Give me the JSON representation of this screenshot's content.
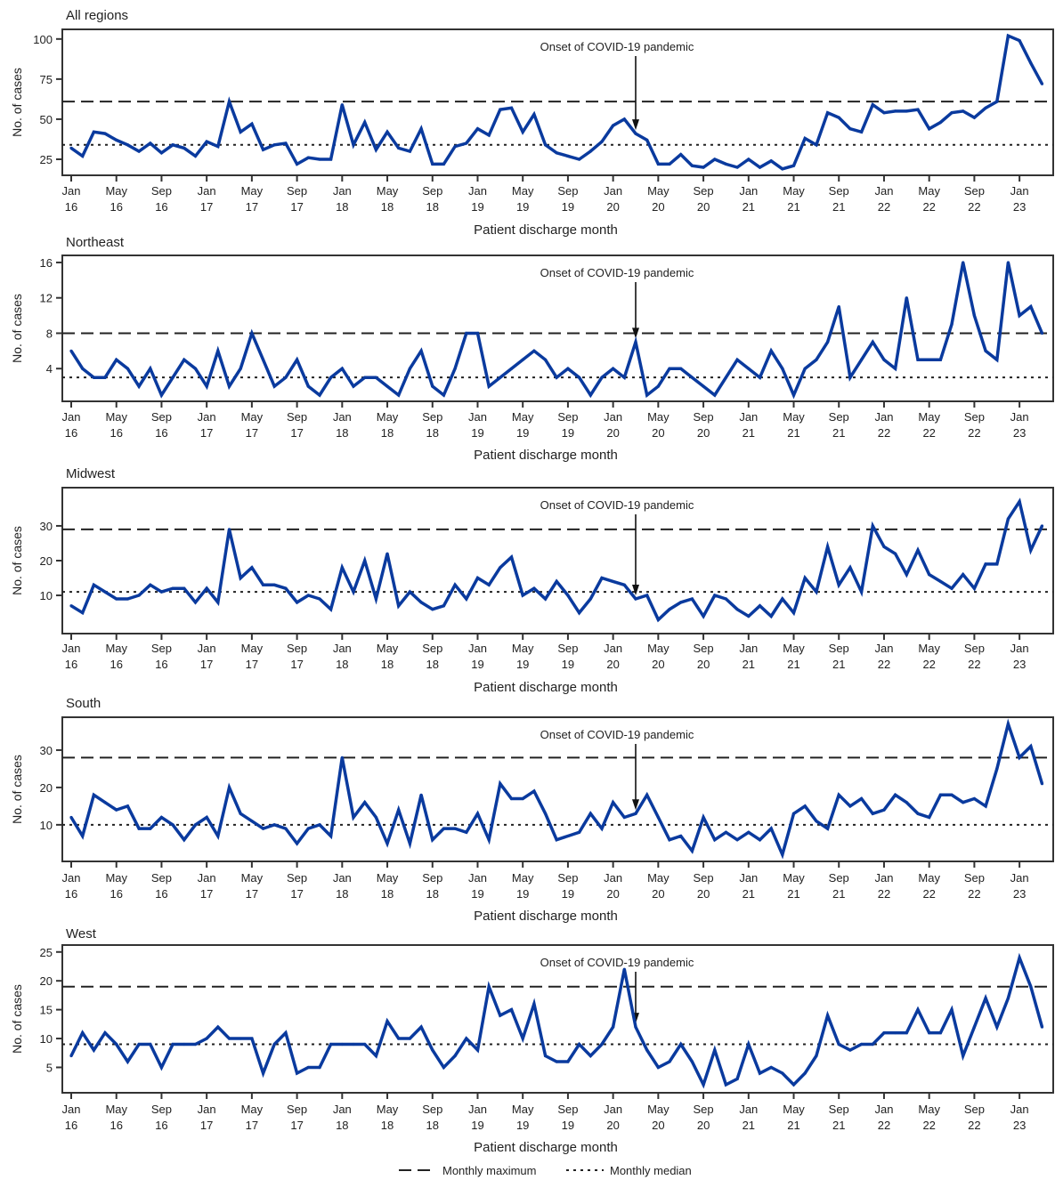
{
  "x_axis": {
    "label": "Patient discharge month",
    "start": "Jan 2016",
    "end": "Mar 2023",
    "tick_labels": [
      [
        "Jan",
        "16"
      ],
      [
        "May",
        "16"
      ],
      [
        "Sep",
        "16"
      ],
      [
        "Jan",
        "17"
      ],
      [
        "May",
        "17"
      ],
      [
        "Sep",
        "17"
      ],
      [
        "Jan",
        "18"
      ],
      [
        "May",
        "18"
      ],
      [
        "Sep",
        "18"
      ],
      [
        "Jan",
        "19"
      ],
      [
        "May",
        "19"
      ],
      [
        "Sep",
        "19"
      ],
      [
        "Jan",
        "20"
      ],
      [
        "May",
        "20"
      ],
      [
        "Sep",
        "20"
      ],
      [
        "Jan",
        "21"
      ],
      [
        "May",
        "21"
      ],
      [
        "Sep",
        "21"
      ],
      [
        "Jan",
        "22"
      ],
      [
        "May",
        "22"
      ],
      [
        "Sep",
        "22"
      ],
      [
        "Jan",
        "23"
      ]
    ]
  },
  "y_axis_label": "No. of cases",
  "annotation": {
    "text": "Onset of COVID-19 pandemic",
    "month": "Mar 2020"
  },
  "legend": {
    "max_label": "Monthly maximum",
    "median_label": "Monthly median",
    "position": "bottom"
  },
  "colors": {
    "series": "#0a3a9e",
    "reference": "#222222"
  },
  "chart_data": [
    {
      "type": "line",
      "title": "All regions",
      "ylim": [
        15,
        106
      ],
      "yticks": [
        25,
        50,
        75,
        100
      ],
      "monthly_maximum": 61,
      "monthly_median": 34,
      "values": [
        32,
        27,
        42,
        41,
        37,
        34,
        30,
        35,
        29,
        34,
        32,
        27,
        36,
        33,
        61,
        42,
        47,
        31,
        34,
        35,
        22,
        26,
        25,
        25,
        59,
        34,
        48,
        31,
        42,
        32,
        30,
        44,
        22,
        22,
        33,
        35,
        44,
        40,
        56,
        57,
        42,
        53,
        34,
        29,
        27,
        25,
        30,
        36,
        46,
        50,
        41,
        37,
        22,
        22,
        28,
        21,
        20,
        25,
        22,
        20,
        25,
        20,
        24,
        19,
        21,
        38,
        34,
        54,
        51,
        44,
        42,
        59,
        54,
        55,
        55,
        56,
        44,
        48,
        54,
        55,
        51,
        57,
        61,
        102,
        99,
        85,
        72
      ]
    },
    {
      "type": "line",
      "title": "Northeast",
      "ylim": [
        0.3,
        16.8
      ],
      "yticks": [
        4,
        8,
        12,
        16
      ],
      "monthly_maximum": 8,
      "monthly_median": 3,
      "values": [
        6,
        4,
        3,
        3,
        5,
        4,
        2,
        4,
        1,
        3,
        5,
        4,
        2,
        6,
        2,
        4,
        8,
        5,
        2,
        3,
        5,
        2,
        1,
        3,
        4,
        2,
        3,
        3,
        2,
        1,
        4,
        6,
        2,
        1,
        4,
        8,
        8,
        2,
        3,
        4,
        5,
        6,
        5,
        3,
        4,
        3,
        1,
        3,
        4,
        3,
        7,
        1,
        2,
        4,
        4,
        3,
        2,
        1,
        3,
        5,
        4,
        3,
        6,
        4,
        1,
        4,
        5,
        7,
        11,
        3,
        5,
        7,
        5,
        4,
        12,
        5,
        5,
        5,
        9,
        16,
        10,
        6,
        5,
        16,
        10,
        11,
        8
      ]
    },
    {
      "type": "line",
      "title": "Midwest",
      "ylim": [
        -1,
        41
      ],
      "yticks": [
        10,
        20,
        30
      ],
      "monthly_maximum": 29,
      "monthly_median": 11,
      "values": [
        7,
        5,
        13,
        11,
        9,
        9,
        10,
        13,
        11,
        12,
        12,
        8,
        12,
        8,
        29,
        15,
        18,
        13,
        13,
        12,
        8,
        10,
        9,
        6,
        18,
        11,
        20,
        9,
        22,
        7,
        11,
        8,
        6,
        7,
        13,
        9,
        15,
        13,
        18,
        21,
        10,
        12,
        9,
        14,
        10,
        5,
        9,
        15,
        14,
        13,
        9,
        10,
        3,
        6,
        8,
        9,
        4,
        10,
        9,
        6,
        4,
        7,
        4,
        9,
        5,
        15,
        11,
        24,
        13,
        18,
        11,
        30,
        24,
        22,
        16,
        23,
        16,
        14,
        12,
        16,
        12,
        19,
        19,
        32,
        37,
        23,
        30
      ]
    },
    {
      "type": "line",
      "title": "South",
      "ylim": [
        0.2,
        38.8
      ],
      "yticks": [
        10,
        20,
        30
      ],
      "monthly_maximum": 28,
      "monthly_median": 10,
      "values": [
        12,
        7,
        18,
        16,
        14,
        15,
        9,
        9,
        12,
        10,
        6,
        10,
        12,
        7,
        20,
        13,
        11,
        9,
        10,
        9,
        5,
        9,
        10,
        7,
        28,
        12,
        16,
        12,
        5,
        14,
        5,
        18,
        6,
        9,
        9,
        8,
        13,
        6,
        21,
        17,
        17,
        19,
        13,
        6,
        7,
        8,
        13,
        9,
        16,
        12,
        13,
        18,
        12,
        6,
        7,
        3,
        12,
        6,
        8,
        6,
        8,
        6,
        9,
        2,
        13,
        15,
        11,
        9,
        18,
        15,
        17,
        13,
        14,
        18,
        16,
        13,
        12,
        18,
        18,
        16,
        17,
        15,
        25,
        37,
        28,
        31,
        21
      ]
    },
    {
      "type": "line",
      "title": "West",
      "ylim": [
        0.6,
        26.2
      ],
      "yticks": [
        5,
        10,
        15,
        20,
        25
      ],
      "monthly_maximum": 19,
      "monthly_median": 9,
      "values": [
        7,
        11,
        8,
        11,
        9,
        6,
        9,
        9,
        5,
        9,
        9,
        9,
        10,
        12,
        10,
        10,
        10,
        4,
        9,
        11,
        4,
        5,
        5,
        9,
        9,
        9,
        9,
        7,
        13,
        10,
        10,
        12,
        8,
        5,
        7,
        10,
        8,
        19,
        14,
        15,
        10,
        16,
        7,
        6,
        6,
        9,
        7,
        9,
        12,
        22,
        12,
        8,
        5,
        6,
        9,
        6,
        2,
        8,
        2,
        3,
        9,
        4,
        5,
        4,
        2,
        4,
        7,
        14,
        9,
        8,
        9,
        9,
        11,
        11,
        11,
        15,
        11,
        11,
        15,
        7,
        12,
        17,
        12,
        17,
        24,
        19,
        12
      ]
    }
  ]
}
